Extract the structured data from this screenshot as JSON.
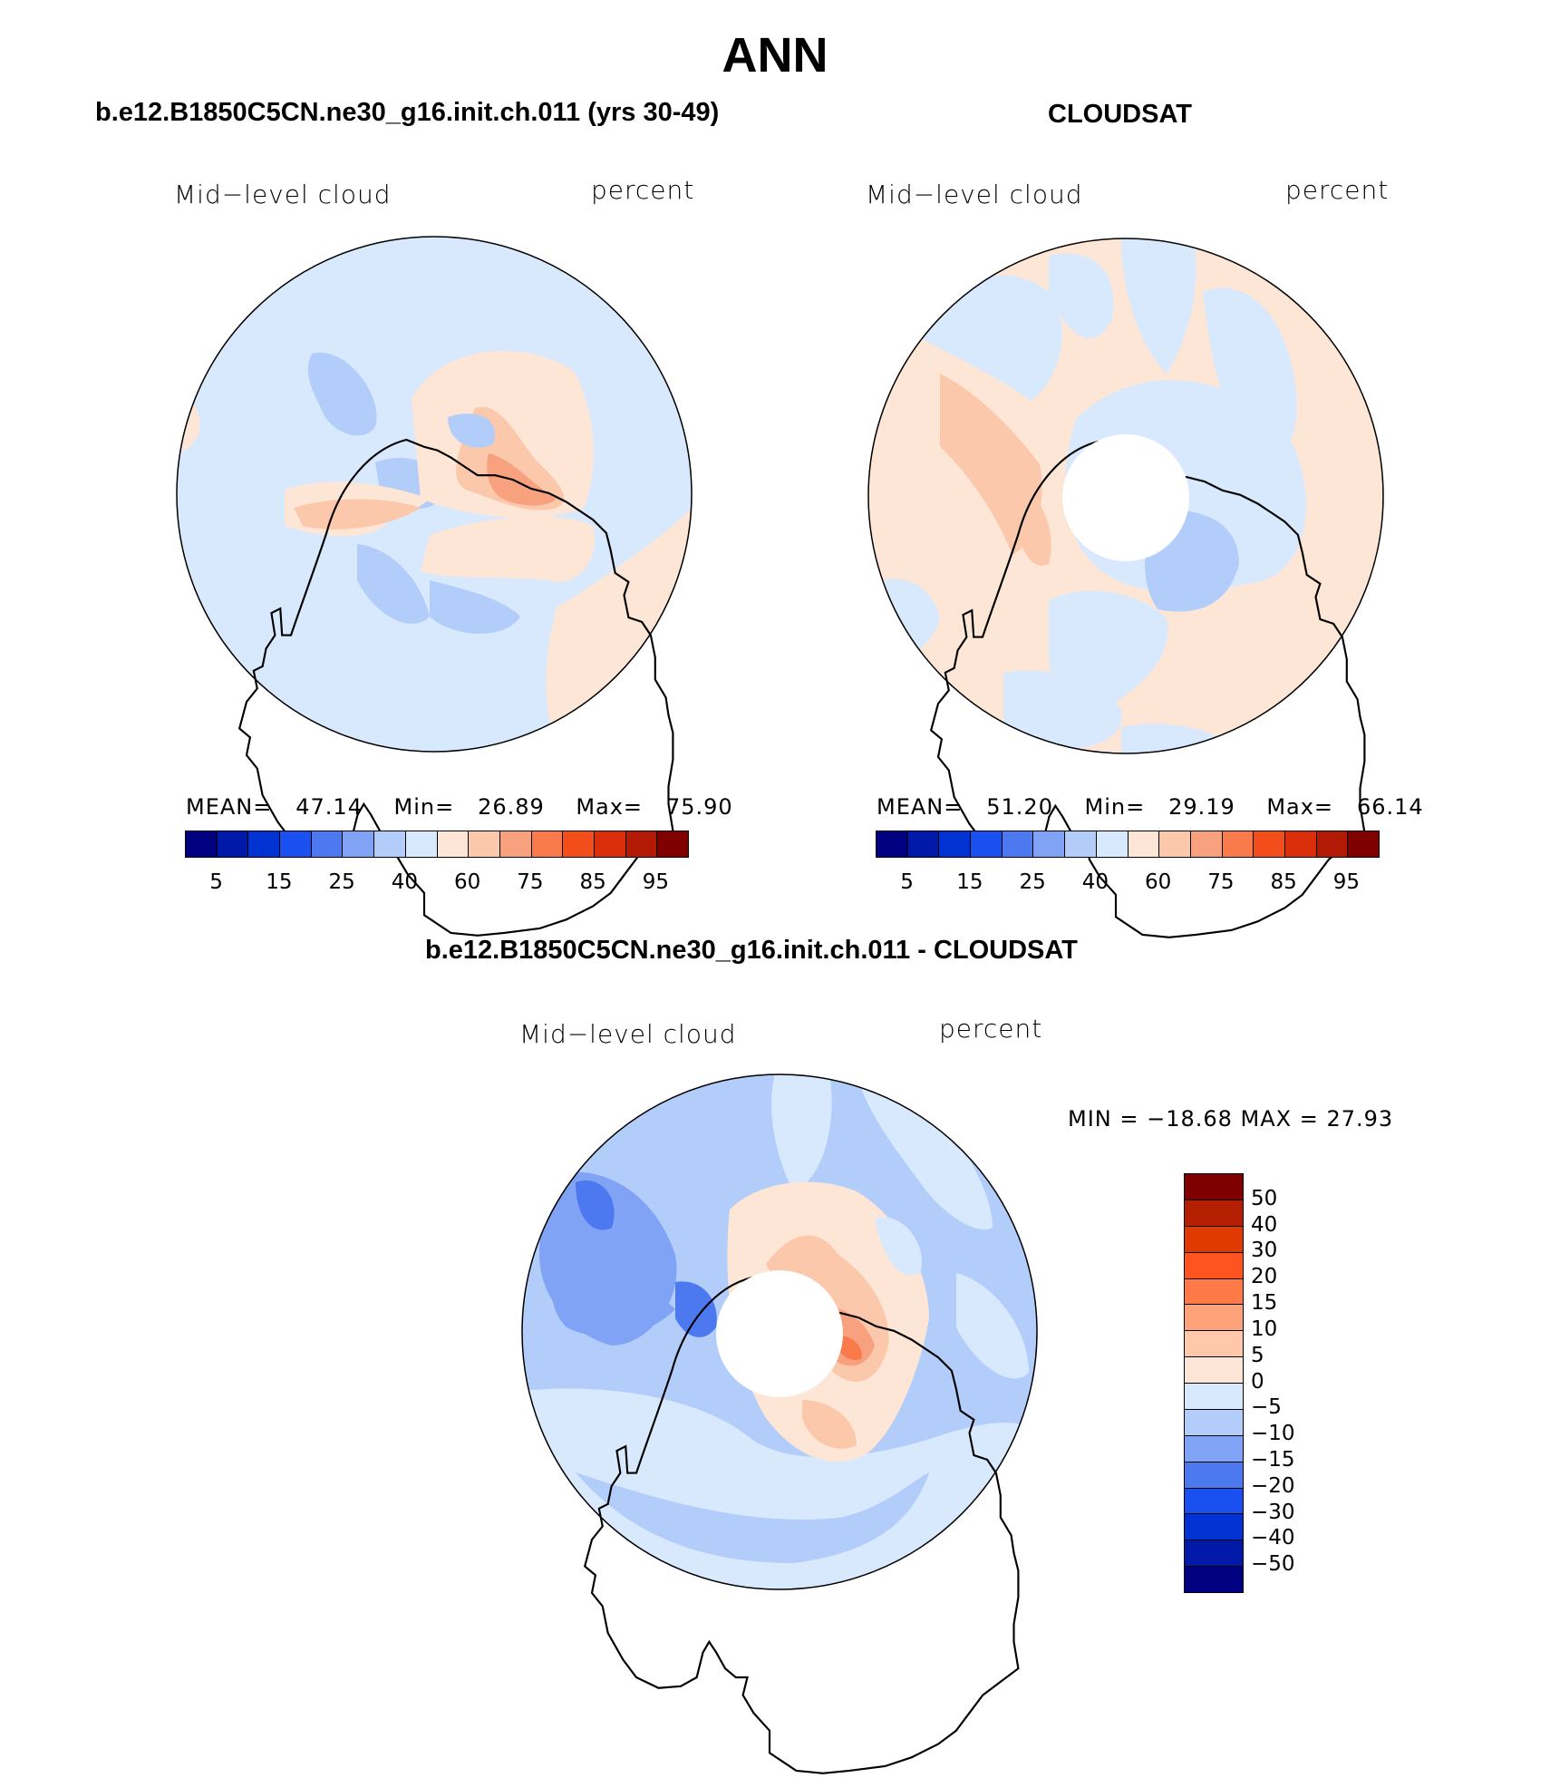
{
  "title": "ANN",
  "panels": [
    {
      "heading": "b.e12.B1850C5CN.ne30_g16.init.ch.011 (yrs 30-49)",
      "variable": "Mid−level cloud",
      "units": "percent",
      "stats": {
        "mean_label": "MEAN=",
        "mean": "47.14",
        "min_label": "Min=",
        "min": "26.89",
        "max_label": "Max=",
        "max": "75.90"
      }
    },
    {
      "heading": "CLOUDSAT",
      "variable": "Mid−level cloud",
      "units": "percent",
      "stats": {
        "mean_label": "MEAN=",
        "mean": "51.20",
        "min_label": "Min=",
        "min": "29.19",
        "max_label": "Max=",
        "max": "66.14"
      }
    },
    {
      "heading": "b.e12.B1850C5CN.ne30_g16.init.ch.011 - CLOUDSAT",
      "variable": "Mid−level cloud",
      "units": "percent",
      "minmax": "MIN = −18.68  MAX =   27.93"
    }
  ],
  "colorbar_abs": {
    "colors": [
      "#000080",
      "#0019a8",
      "#0033d1",
      "#1a4ff0",
      "#4d79f0",
      "#80a3f5",
      "#b3cdfa",
      "#d9e9fd",
      "#fde6d5",
      "#fbc8ac",
      "#f8a17f",
      "#f97a4b",
      "#f24d1a",
      "#d92e09",
      "#b31a05",
      "#800000"
    ],
    "tick_labels": [
      "5",
      "15",
      "25",
      "40",
      "60",
      "75",
      "85",
      "95"
    ]
  },
  "colorbar_diff": {
    "colors": [
      "#800000",
      "#b31f00",
      "#e03a00",
      "#ff5420",
      "#ff7a47",
      "#ffa27a",
      "#ffc8aa",
      "#fde6d5",
      "#d9e9fd",
      "#b3cdfa",
      "#80a3f5",
      "#4d79f0",
      "#1a4ff0",
      "#0033d1",
      "#0019a8",
      "#000080"
    ],
    "tick_labels": [
      "50",
      "40",
      "30",
      "20",
      "15",
      "10",
      "5",
      "0",
      "−5",
      "−10",
      "−15",
      "−20",
      "−30",
      "−40",
      "−50"
    ]
  }
}
